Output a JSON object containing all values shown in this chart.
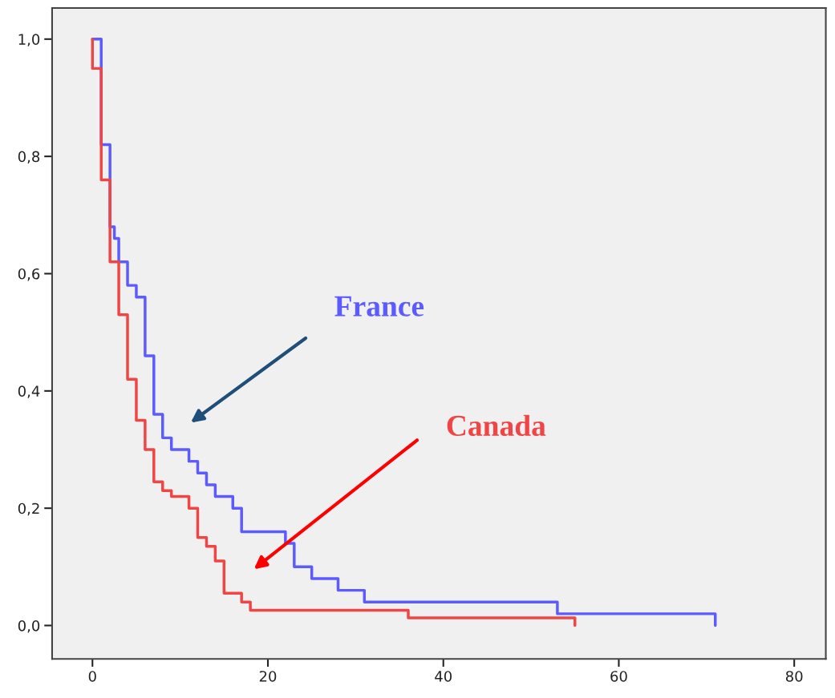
{
  "chart_data": {
    "type": "step",
    "series": [
      {
        "name": "France",
        "color": "#5b5bff",
        "x": [
          0,
          1,
          2,
          2.5,
          3,
          4,
          5,
          6,
          7,
          8,
          9,
          11,
          12,
          13,
          14,
          16,
          17,
          22,
          23,
          25,
          28,
          31,
          53,
          71
        ],
        "values": [
          1.0,
          0.82,
          0.68,
          0.66,
          0.62,
          0.58,
          0.56,
          0.46,
          0.36,
          0.32,
          0.3,
          0.28,
          0.26,
          0.24,
          0.22,
          0.2,
          0.16,
          0.14,
          0.1,
          0.08,
          0.06,
          0.04,
          0.02,
          0.0
        ]
      },
      {
        "name": "Canada",
        "color": "#f04545",
        "x": [
          0,
          0,
          1,
          2,
          3,
          4,
          5,
          6,
          7,
          8,
          9,
          11,
          12,
          13,
          14,
          15,
          17,
          18,
          36,
          55
        ],
        "values": [
          1.0,
          0.95,
          0.76,
          0.62,
          0.53,
          0.42,
          0.35,
          0.3,
          0.245,
          0.23,
          0.22,
          0.2,
          0.15,
          0.135,
          0.11,
          0.055,
          0.04,
          0.026,
          0.013,
          0.0
        ]
      }
    ],
    "xlim": [
      -4.6,
      83.6
    ],
    "ylim": [
      -0.057,
      1.053
    ],
    "xticks": [
      0,
      20,
      40,
      60,
      80
    ],
    "yticks": [
      {
        "value": 0.0,
        "label": "0,0"
      },
      {
        "value": 0.2,
        "label": "0,2"
      },
      {
        "value": 0.4,
        "label": "0,4"
      },
      {
        "value": 0.6,
        "label": "0,6"
      },
      {
        "value": 0.8,
        "label": "0,8"
      },
      {
        "value": 1.0,
        "label": "1,0"
      }
    ],
    "grid": false
  }
}
